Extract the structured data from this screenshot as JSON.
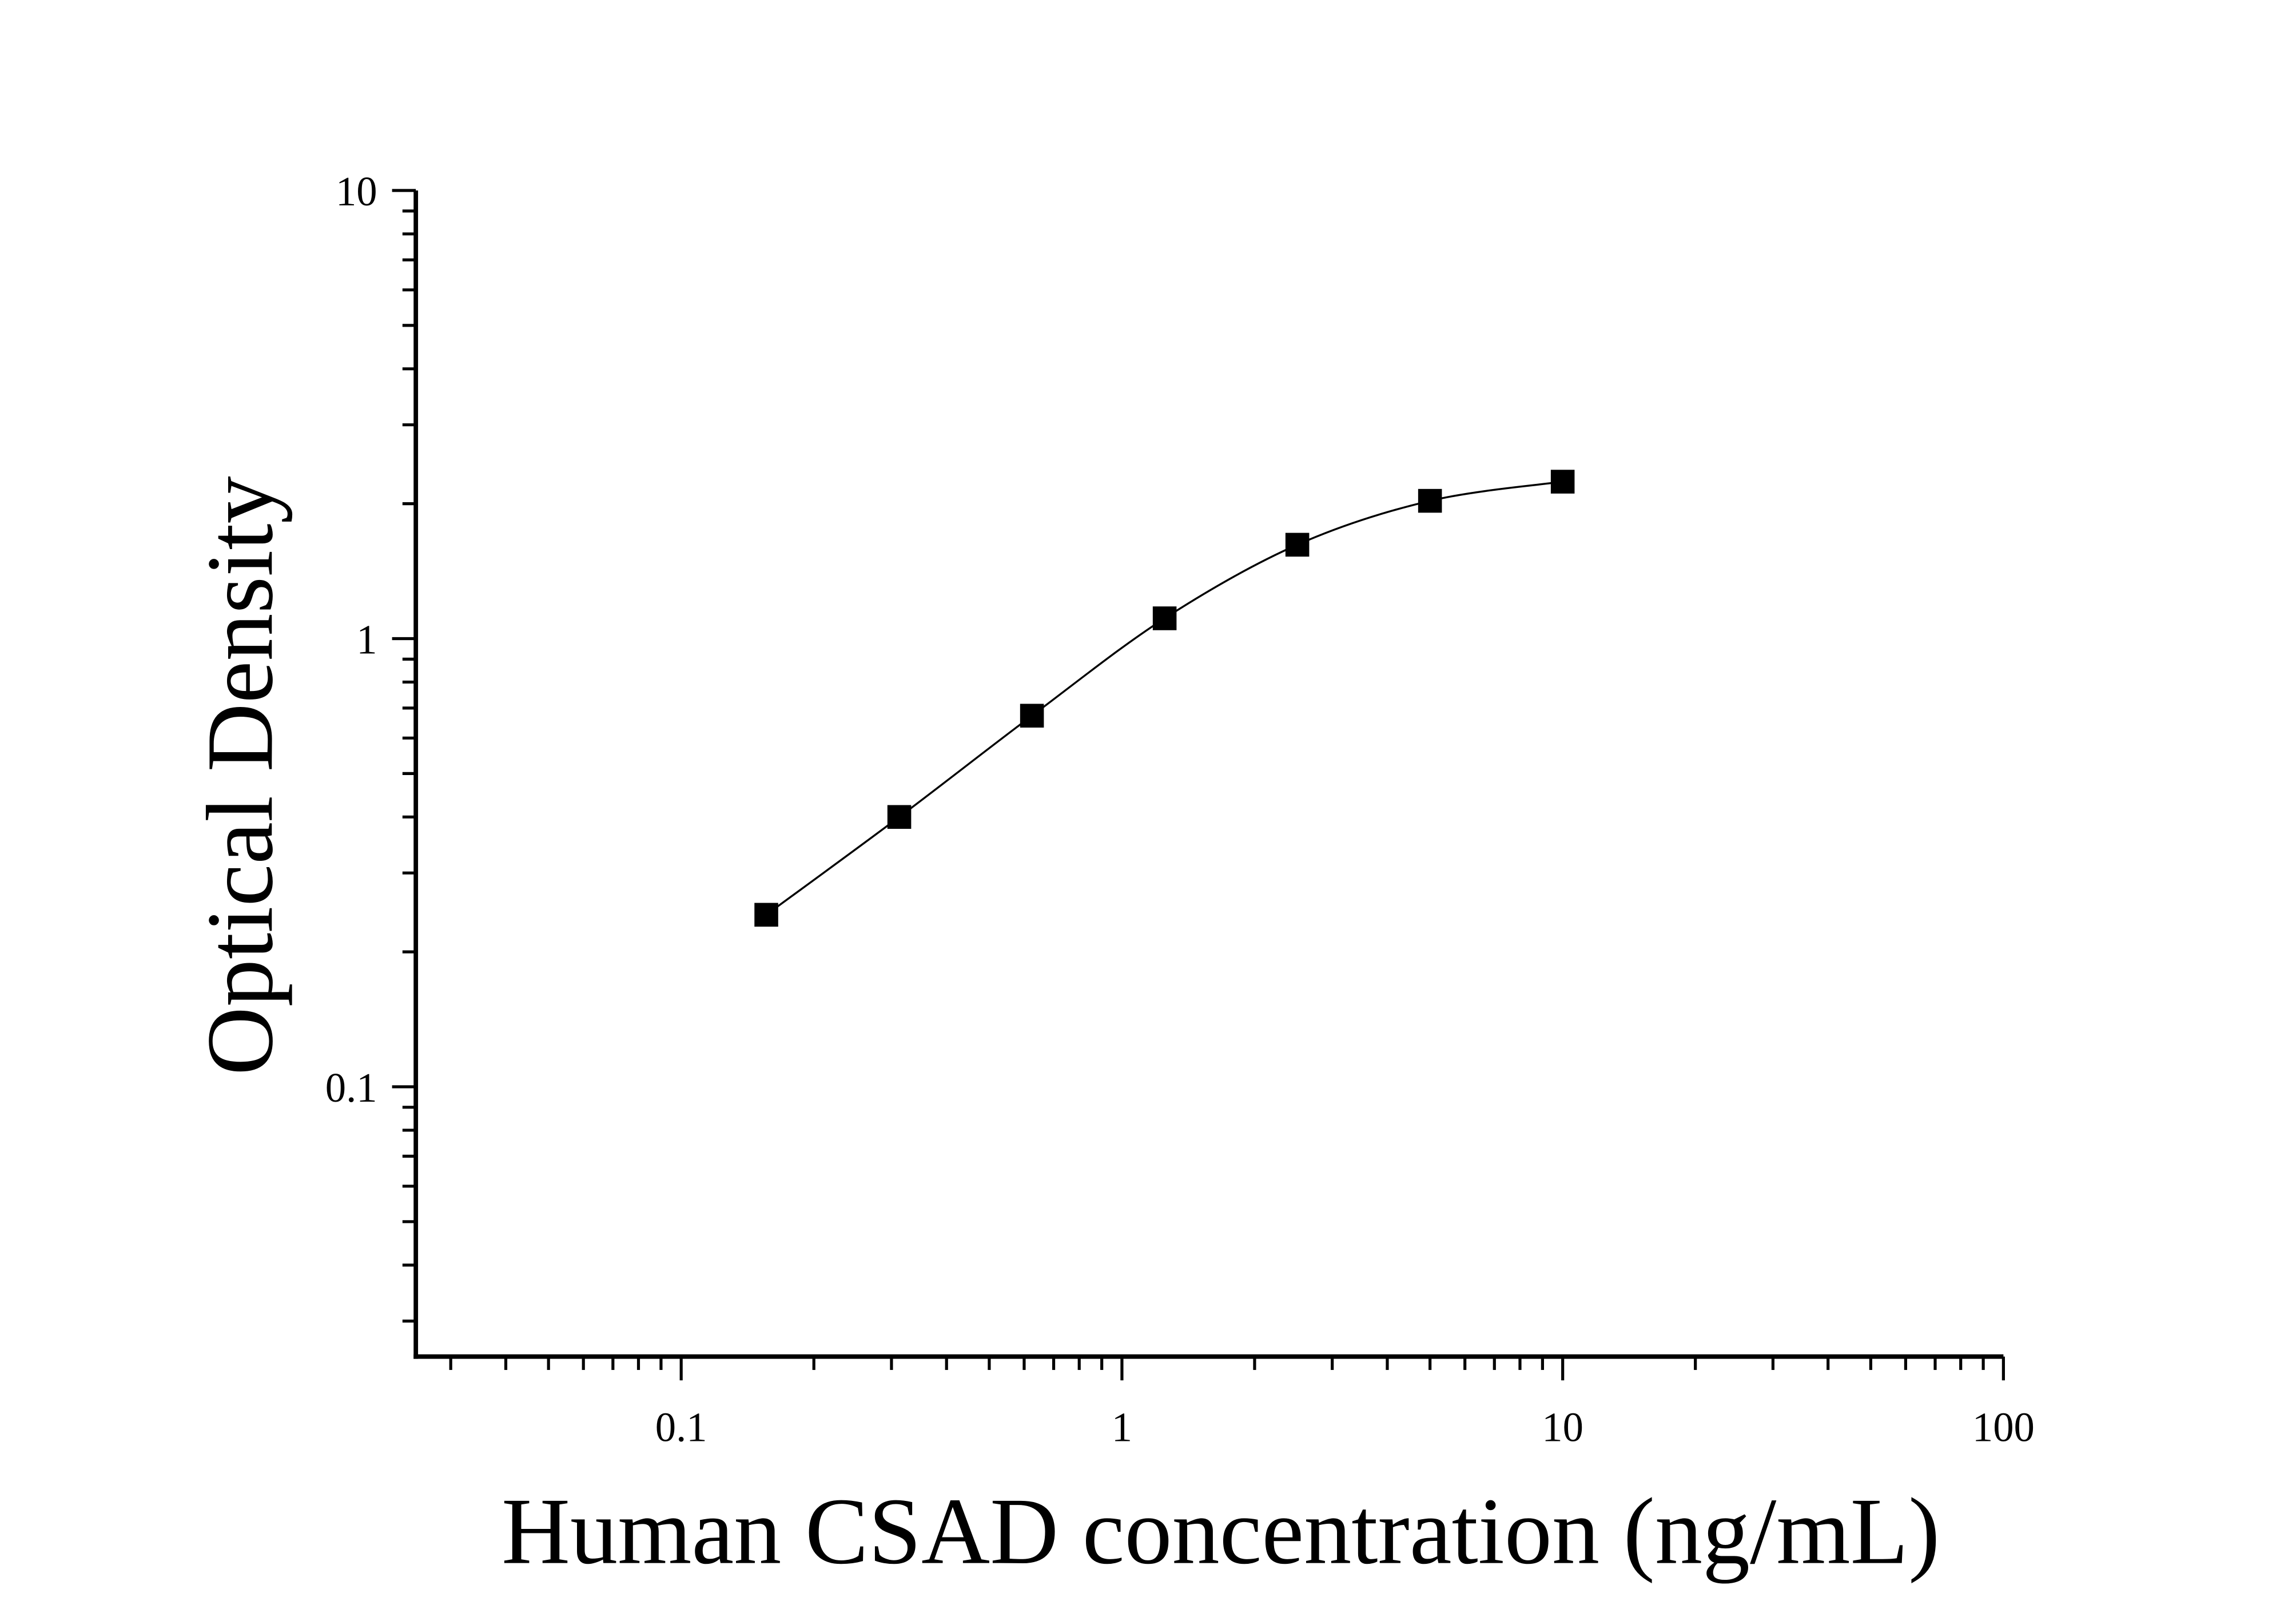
{
  "chart_data": {
    "type": "scatter",
    "title": "",
    "xlabel": "Human CSAD concentration (ng/mL)",
    "ylabel": "Optical Density",
    "x_scale": "log",
    "y_scale": "log",
    "xlim": [
      0.025,
      100
    ],
    "ylim": [
      0.025,
      10
    ],
    "x_ticks": [
      {
        "value": 0.1,
        "label": "0.1"
      },
      {
        "value": 1,
        "label": "1"
      },
      {
        "value": 10,
        "label": "10"
      },
      {
        "value": 100,
        "label": "100"
      }
    ],
    "y_ticks": [
      {
        "value": 0.1,
        "label": "0.1"
      },
      {
        "value": 1,
        "label": "1"
      },
      {
        "value": 10,
        "label": "10"
      }
    ],
    "grid": false,
    "marker": "square",
    "color": "#000000",
    "fit_curve": true,
    "series": [
      {
        "x": [
          0.156,
          0.3125,
          0.625,
          1.25,
          2.5,
          5,
          10
        ],
        "y": [
          0.242,
          0.4,
          0.673,
          1.11,
          1.62,
          2.03,
          2.24
        ]
      }
    ]
  }
}
